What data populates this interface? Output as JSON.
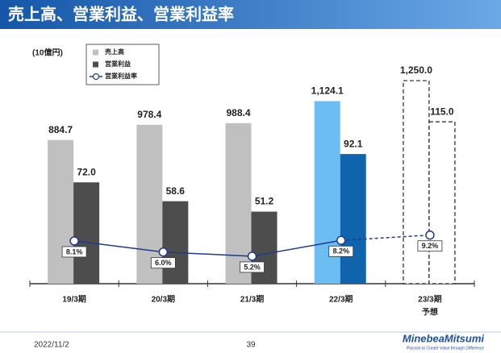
{
  "header": {
    "title": "売上高、営業利益、営業利益率"
  },
  "footer": {
    "date": "2022/11/2",
    "page": "39",
    "logo": "MinebeaMitsumi",
    "tagline": "Passion to Create Value through Difference"
  },
  "chart_data": {
    "type": "bar",
    "unit_label": "(10億円)",
    "categories": [
      "19/3期",
      "20/3期",
      "21/3期",
      "22/3期",
      "23/3期"
    ],
    "sublabels": [
      null,
      null,
      null,
      null,
      "予想"
    ],
    "forecast": [
      false,
      false,
      false,
      false,
      true
    ],
    "ylim": [
      0,
      1300
    ],
    "y2lim": [
      0,
      150
    ],
    "y3lim": [
      0,
      40
    ],
    "legend": "top-left",
    "series": [
      {
        "name": "売上高",
        "color": "#c0c0c0",
        "colors": [
          "#c0c0c0",
          "#c0c0c0",
          "#c0c0c0",
          "#6cbdf2",
          "#ffffff"
        ],
        "values": [
          884.7,
          978.4,
          988.4,
          1124.1,
          1250.0
        ],
        "value_labels": [
          "884.7",
          "978.4",
          "988.4",
          "1,124.1",
          "1,250.0"
        ]
      },
      {
        "name": "営業利益",
        "color": "#4d4d4d",
        "colors": [
          "#4d4d4d",
          "#4d4d4d",
          "#4d4d4d",
          "#1064ae",
          "#ffffff"
        ],
        "values": [
          72.0,
          58.6,
          51.2,
          92.1,
          115.0
        ],
        "value_labels": [
          "72.0",
          "58.6",
          "51.2",
          "92.1",
          "115.0"
        ],
        "axis": "y2"
      },
      {
        "name": "営業利益率",
        "type": "line",
        "color": "#1f3b8c",
        "values": [
          8.1,
          6.0,
          5.2,
          8.2,
          9.2
        ],
        "value_labels": [
          "8.1%",
          "6.0%",
          "5.2%",
          "8.2%",
          "9.2%"
        ],
        "axis": "y3"
      }
    ]
  }
}
